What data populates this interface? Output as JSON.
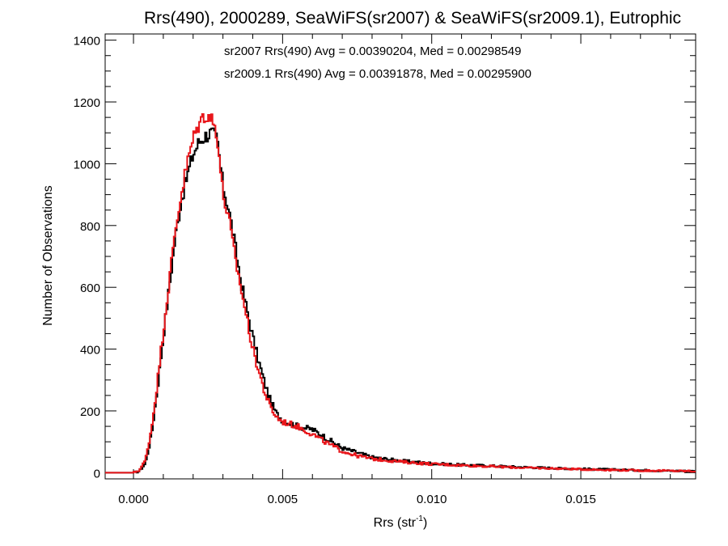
{
  "chart_data": {
    "type": "line",
    "title": "Rrs(490), 2000289, SeaWiFS(sr2007) & SeaWiFS(sr2009.1), Eutrophic",
    "xlabel_main": "Rrs (str",
    "xlabel_sup": "-1",
    "xlabel_close": ")",
    "ylabel": "Number of Observations",
    "xlim": [
      -0.00095,
      0.01885
    ],
    "ylim": [
      -20,
      1420
    ],
    "xticks": [
      0.0,
      0.005,
      0.01,
      0.015
    ],
    "xtick_labels": [
      "0.000",
      "0.005",
      "0.010",
      "0.015"
    ],
    "yticks": [
      0,
      200,
      400,
      600,
      800,
      1000,
      1200,
      1400
    ],
    "ytick_labels": [
      "0",
      "200",
      "400",
      "600",
      "800",
      "1000",
      "1200",
      "1400"
    ],
    "grid": false,
    "annotations": [
      {
        "text": "sr2007 Rrs(490) Avg = 0.00390204, Med = 0.00298549",
        "color": "#000000"
      },
      {
        "text": "sr2009.1 Rrs(490) Avg = 0.00391878, Med = 0.00295900",
        "color": "#e8161b"
      }
    ],
    "series": [
      {
        "color": "#000000",
        "x": [
          -0.0009,
          0.0,
          0.0002,
          0.0004,
          0.0006,
          0.0008,
          0.001,
          0.0012,
          0.0014,
          0.0016,
          0.0018,
          0.002,
          0.0022,
          0.0024,
          0.0026,
          0.0028,
          0.003,
          0.0032,
          0.0034,
          0.0036,
          0.0038,
          0.004,
          0.0042,
          0.0044,
          0.0046,
          0.0048,
          0.005,
          0.0055,
          0.006,
          0.0065,
          0.007,
          0.0075,
          0.008,
          0.009,
          0.01,
          0.011,
          0.012,
          0.013,
          0.014,
          0.015,
          0.016,
          0.017,
          0.018,
          0.0188
        ],
        "y": [
          0,
          0,
          5,
          30,
          120,
          270,
          440,
          600,
          760,
          880,
          960,
          1030,
          1070,
          1090,
          1100,
          1080,
          930,
          850,
          740,
          620,
          530,
          440,
          360,
          290,
          230,
          190,
          170,
          150,
          140,
          110,
          80,
          65,
          50,
          38,
          30,
          25,
          22,
          18,
          15,
          12,
          10,
          8,
          6,
          5
        ]
      },
      {
        "color": "#e8161b",
        "x": [
          -0.0009,
          0.0,
          0.0002,
          0.0004,
          0.0006,
          0.0008,
          0.001,
          0.0012,
          0.0014,
          0.0016,
          0.0018,
          0.002,
          0.0022,
          0.0024,
          0.0026,
          0.0028,
          0.003,
          0.0032,
          0.0034,
          0.0036,
          0.0038,
          0.004,
          0.0042,
          0.0044,
          0.0046,
          0.0048,
          0.005,
          0.0055,
          0.006,
          0.0065,
          0.007,
          0.0075,
          0.008,
          0.009,
          0.01,
          0.011,
          0.012,
          0.013,
          0.014,
          0.015,
          0.016,
          0.017,
          0.018,
          0.0188
        ],
        "y": [
          0,
          0,
          8,
          40,
          140,
          290,
          460,
          620,
          780,
          900,
          1000,
          1080,
          1130,
          1160,
          1150,
          1100,
          900,
          820,
          700,
          600,
          500,
          400,
          330,
          260,
          210,
          180,
          165,
          150,
          125,
          95,
          70,
          55,
          45,
          35,
          28,
          24,
          20,
          16,
          14,
          11,
          9,
          7,
          6,
          5
        ]
      }
    ]
  }
}
